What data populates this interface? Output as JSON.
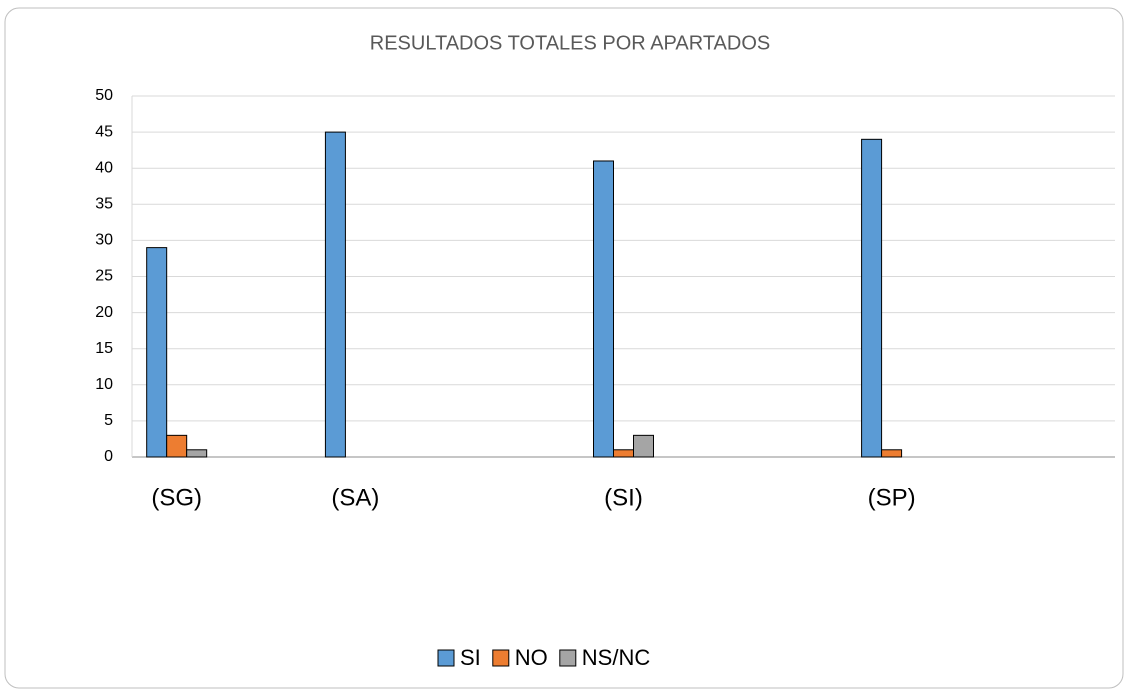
{
  "chart_data": {
    "type": "bar",
    "title": "RESULTADOS TOTALES POR APARTADOS",
    "categories": [
      "(SG)",
      null,
      "(SA)",
      null,
      null,
      "(SI)",
      null,
      null,
      "(SP)",
      null,
      null
    ],
    "series": [
      {
        "name": "SI",
        "color": "#5b9bd5",
        "values": [
          29,
          null,
          45,
          null,
          null,
          41,
          null,
          null,
          44,
          null,
          null
        ]
      },
      {
        "name": "NO",
        "color": "#ed7d31",
        "values": [
          3,
          null,
          0,
          null,
          null,
          1,
          null,
          null,
          1,
          null,
          null
        ]
      },
      {
        "name": "NS/NC",
        "color": "#a5a5a5",
        "values": [
          1,
          null,
          0,
          null,
          null,
          3,
          null,
          null,
          0,
          null,
          null
        ]
      }
    ],
    "ylim": [
      0,
      50
    ],
    "yticks": [
      0,
      5,
      10,
      15,
      20,
      25,
      30,
      35,
      40,
      45,
      50
    ],
    "grid": true,
    "legend": "bottom"
  }
}
